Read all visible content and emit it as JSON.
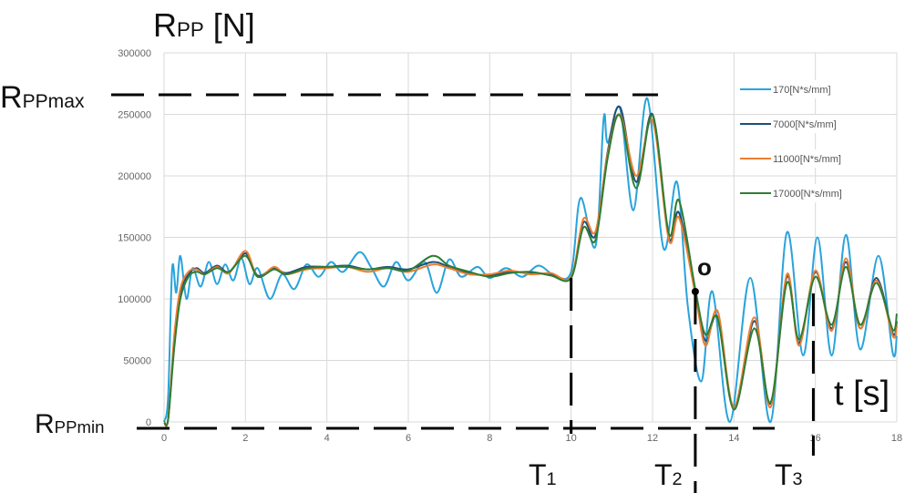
{
  "chart_data": {
    "type": "line",
    "title": "",
    "ylabel": "RPP [N]",
    "xlabel": "t [s]",
    "xlim": [
      0,
      18
    ],
    "ylim": [
      0,
      300000
    ],
    "xticks": [
      0,
      2,
      4,
      6,
      8,
      10,
      12,
      14,
      16,
      18
    ],
    "yticks": [
      0,
      50000,
      100000,
      150000,
      200000,
      250000,
      300000
    ],
    "grid": true,
    "legend_position": "right",
    "series": [
      {
        "name": "170[N*s/mm]",
        "color": "#29a3dc",
        "points": [
          [
            0,
            0
          ],
          [
            0.1,
            20000
          ],
          [
            0.2,
            125000
          ],
          [
            0.3,
            105000
          ],
          [
            0.4,
            135000
          ],
          [
            0.55,
            100000
          ],
          [
            0.7,
            125000
          ],
          [
            0.9,
            110000
          ],
          [
            1.1,
            130000
          ],
          [
            1.3,
            112000
          ],
          [
            1.5,
            128000
          ],
          [
            1.7,
            115000
          ],
          [
            1.9,
            133000
          ],
          [
            2.1,
            112000
          ],
          [
            2.3,
            125000
          ],
          [
            2.6,
            100000
          ],
          [
            2.9,
            120000
          ],
          [
            3.2,
            108000
          ],
          [
            3.5,
            128000
          ],
          [
            3.8,
            118000
          ],
          [
            4.1,
            130000
          ],
          [
            4.4,
            122000
          ],
          [
            4.8,
            138000
          ],
          [
            5.1,
            125000
          ],
          [
            5.4,
            110000
          ],
          [
            5.7,
            130000
          ],
          [
            6.0,
            115000
          ],
          [
            6.4,
            130000
          ],
          [
            6.7,
            105000
          ],
          [
            7.0,
            132000
          ],
          [
            7.3,
            118000
          ],
          [
            7.7,
            126000
          ],
          [
            8.0,
            117000
          ],
          [
            8.4,
            125000
          ],
          [
            8.8,
            118000
          ],
          [
            9.2,
            127000
          ],
          [
            9.6,
            119000
          ],
          [
            10,
            122000
          ],
          [
            10.23,
            182000
          ],
          [
            10.6,
            143000
          ],
          [
            10.8,
            247000
          ],
          [
            10.9,
            227000
          ],
          [
            11.2,
            255000
          ],
          [
            11.53,
            172000
          ],
          [
            11.87,
            263000
          ],
          [
            12.27,
            141000
          ],
          [
            12.6,
            195000
          ],
          [
            12.87,
            93000
          ],
          [
            13.2,
            33000
          ],
          [
            13.47,
            106000
          ],
          [
            13.9,
            0
          ],
          [
            14.4,
            117000
          ],
          [
            14.9,
            0
          ],
          [
            15.3,
            154000
          ],
          [
            15.7,
            54000
          ],
          [
            16.05,
            150000
          ],
          [
            16.4,
            54000
          ],
          [
            16.75,
            152000
          ],
          [
            17.1,
            59000
          ],
          [
            17.55,
            135000
          ],
          [
            17.9,
            56000
          ],
          [
            18,
            70000
          ]
        ]
      },
      {
        "name": "7000[N*s/mm]",
        "color": "#1f4e79",
        "points": [
          [
            0,
            0
          ],
          [
            0.1,
            2000
          ],
          [
            0.25,
            65000
          ],
          [
            0.4,
            105000
          ],
          [
            0.6,
            120000
          ],
          [
            0.8,
            125000
          ],
          [
            1,
            121000
          ],
          [
            1.3,
            127000
          ],
          [
            1.6,
            122000
          ],
          [
            2,
            137000
          ],
          [
            2.3,
            119000
          ],
          [
            2.7,
            125000
          ],
          [
            3,
            121000
          ],
          [
            3.5,
            126000
          ],
          [
            4,
            126000
          ],
          [
            4.5,
            127000
          ],
          [
            5,
            124000
          ],
          [
            5.5,
            126000
          ],
          [
            6,
            124000
          ],
          [
            6.6,
            130000
          ],
          [
            7,
            126000
          ],
          [
            7.5,
            121000
          ],
          [
            8,
            119000
          ],
          [
            8.5,
            122000
          ],
          [
            9,
            121000
          ],
          [
            9.5,
            120000
          ],
          [
            10,
            118000
          ],
          [
            10.3,
            162000
          ],
          [
            10.6,
            152000
          ],
          [
            10.9,
            220000
          ],
          [
            11.2,
            256000
          ],
          [
            11.6,
            195000
          ],
          [
            12,
            250000
          ],
          [
            12.4,
            150000
          ],
          [
            12.65,
            170000
          ],
          [
            13.05,
            105000
          ],
          [
            13.3,
            66000
          ],
          [
            13.6,
            85000
          ],
          [
            14,
            12000
          ],
          [
            14.5,
            82000
          ],
          [
            14.9,
            15000
          ],
          [
            15.3,
            118000
          ],
          [
            15.6,
            64000
          ],
          [
            16,
            122000
          ],
          [
            16.4,
            76000
          ],
          [
            16.75,
            130000
          ],
          [
            17.1,
            76000
          ],
          [
            17.5,
            117000
          ],
          [
            17.9,
            72000
          ],
          [
            18,
            82000
          ]
        ]
      },
      {
        "name": "11000[N*s/mm]",
        "color": "#ed7d31",
        "points": [
          [
            0,
            0
          ],
          [
            0.1,
            2000
          ],
          [
            0.25,
            70000
          ],
          [
            0.4,
            108000
          ],
          [
            0.6,
            122000
          ],
          [
            0.8,
            124000
          ],
          [
            1,
            120000
          ],
          [
            1.3,
            126000
          ],
          [
            1.6,
            121000
          ],
          [
            2,
            139000
          ],
          [
            2.3,
            118000
          ],
          [
            2.7,
            126000
          ],
          [
            3,
            120000
          ],
          [
            3.5,
            124000
          ],
          [
            4,
            125000
          ],
          [
            4.5,
            126000
          ],
          [
            5,
            122000
          ],
          [
            5.5,
            125000
          ],
          [
            6,
            122000
          ],
          [
            6.6,
            128000
          ],
          [
            7,
            125000
          ],
          [
            7.5,
            120000
          ],
          [
            8,
            120000
          ],
          [
            8.5,
            123000
          ],
          [
            9,
            120000
          ],
          [
            9.5,
            121000
          ],
          [
            10,
            118000
          ],
          [
            10.3,
            165000
          ],
          [
            10.6,
            155000
          ],
          [
            10.9,
            218000
          ],
          [
            11.2,
            250000
          ],
          [
            11.6,
            200000
          ],
          [
            12,
            245000
          ],
          [
            12.4,
            148000
          ],
          [
            12.65,
            166000
          ],
          [
            13.05,
            104000
          ],
          [
            13.3,
            62000
          ],
          [
            13.6,
            90000
          ],
          [
            14,
            12000
          ],
          [
            14.5,
            85000
          ],
          [
            14.9,
            12000
          ],
          [
            15.3,
            120000
          ],
          [
            15.6,
            62000
          ],
          [
            16,
            123000
          ],
          [
            16.4,
            74000
          ],
          [
            16.75,
            133000
          ],
          [
            17.1,
            76000
          ],
          [
            17.5,
            115000
          ],
          [
            17.9,
            70000
          ],
          [
            18,
            78000
          ]
        ]
      },
      {
        "name": "17000[N*s/mm]",
        "color": "#2e7d32",
        "points": [
          [
            0,
            0
          ],
          [
            0.1,
            2000
          ],
          [
            0.25,
            60000
          ],
          [
            0.4,
            100000
          ],
          [
            0.6,
            118000
          ],
          [
            0.8,
            122000
          ],
          [
            1,
            120000
          ],
          [
            1.3,
            125000
          ],
          [
            1.6,
            122000
          ],
          [
            2,
            135000
          ],
          [
            2.3,
            118000
          ],
          [
            2.7,
            124000
          ],
          [
            3,
            120000
          ],
          [
            3.5,
            125000
          ],
          [
            4,
            126000
          ],
          [
            4.5,
            126000
          ],
          [
            5,
            124000
          ],
          [
            5.5,
            125000
          ],
          [
            6,
            123000
          ],
          [
            6.6,
            135000
          ],
          [
            7,
            127000
          ],
          [
            7.5,
            122000
          ],
          [
            8,
            118000
          ],
          [
            8.5,
            121000
          ],
          [
            9,
            122000
          ],
          [
            9.5,
            119000
          ],
          [
            10,
            117000
          ],
          [
            10.3,
            158000
          ],
          [
            10.6,
            148000
          ],
          [
            10.9,
            215000
          ],
          [
            11.2,
            249000
          ],
          [
            11.6,
            190000
          ],
          [
            12,
            249000
          ],
          [
            12.4,
            153000
          ],
          [
            12.65,
            180000
          ],
          [
            13.05,
            108000
          ],
          [
            13.3,
            71000
          ],
          [
            13.6,
            84000
          ],
          [
            14,
            10000
          ],
          [
            14.5,
            76000
          ],
          [
            14.9,
            16000
          ],
          [
            15.3,
            113000
          ],
          [
            15.6,
            67000
          ],
          [
            16,
            118000
          ],
          [
            16.4,
            79000
          ],
          [
            16.75,
            126000
          ],
          [
            17.1,
            79000
          ],
          [
            17.5,
            113000
          ],
          [
            17.9,
            75000
          ],
          [
            18,
            88000
          ]
        ]
      }
    ],
    "annotations": {
      "y_axis_label": {
        "main": "R",
        "sub": "PP",
        "unit": " [N]"
      },
      "rpp_max": {
        "main": "R",
        "sub": "PPmax"
      },
      "rpp_min": {
        "main": "R",
        "sub": "PPmin"
      },
      "point_o": "o",
      "t1": {
        "main": "T",
        "sub": "1",
        "x": 10
      },
      "t2": {
        "main": "T",
        "sub": "2",
        "x": 13.05
      },
      "t3": {
        "main": "T",
        "sub": "3",
        "x": 15.95
      },
      "time_label": "t [s]"
    }
  }
}
